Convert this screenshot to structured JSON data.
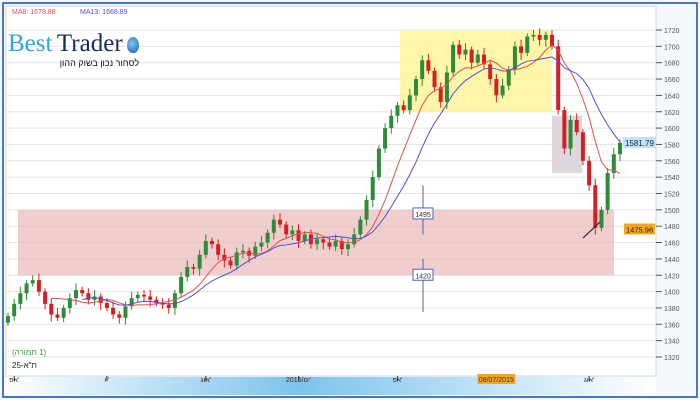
{
  "header": {
    "ma8": "MA8: 1678.88",
    "ma13": "MA13: 1668.89"
  },
  "logo": {
    "word1": "Best",
    "word2": "Trader",
    "tagline": "לסחור נכון בשוק ההון"
  },
  "legend": {
    "period": "(1 תמורה)",
    "instrument": "ת\"א-25"
  },
  "colors": {
    "up": "#2e8b3a",
    "down": "#d42020",
    "ma8": "#e05050",
    "ma13": "#5050d0",
    "yellow_zone": "#fff59a",
    "pink_zone": "#e8b4b4",
    "gray_zone": "#d9d0d8",
    "last_price_bg": "#bfe3f7",
    "marker_bg": "#f5a623"
  },
  "chart_data": {
    "type": "candlestick",
    "title": "",
    "ylim": [
      1310,
      1730
    ],
    "yticks": [
      1320,
      1340,
      1360,
      1380,
      1400,
      1420,
      1440,
      1460,
      1480,
      1500,
      1520,
      1540,
      1560,
      1580,
      1600,
      1620,
      1640,
      1660,
      1680,
      1700,
      1720
    ],
    "xtick_labels": [
      "אפ'",
      "יו'",
      "אוג'",
      "2015/ינו'",
      "אפ'",
      "08/07/2015",
      "אוג'"
    ],
    "highlighted_date": "08/07/2015",
    "closes": [
      1370,
      1385,
      1398,
      1410,
      1414,
      1400,
      1385,
      1372,
      1368,
      1380,
      1392,
      1402,
      1398,
      1390,
      1394,
      1386,
      1380,
      1372,
      1368,
      1382,
      1392,
      1396,
      1394,
      1390,
      1386,
      1384,
      1380,
      1398,
      1418,
      1430,
      1428,
      1445,
      1462,
      1458,
      1445,
      1438,
      1432,
      1448,
      1450,
      1444,
      1455,
      1460,
      1472,
      1488,
      1482,
      1470,
      1475,
      1462,
      1470,
      1458,
      1464,
      1460,
      1455,
      1462,
      1452,
      1458,
      1470,
      1488,
      1512,
      1540,
      1575,
      1600,
      1615,
      1628,
      1622,
      1640,
      1660,
      1683,
      1670,
      1650,
      1632,
      1668,
      1702,
      1690,
      1696,
      1680,
      1690,
      1678,
      1660,
      1640,
      1652,
      1672,
      1700,
      1692,
      1712,
      1714,
      1708,
      1714,
      1700,
      1622,
      1575,
      1610,
      1595,
      1560,
      1530,
      1478,
      1500,
      1545,
      1568,
      1582
    ],
    "moving_averages": [
      {
        "name": "MA8",
        "period": 8
      },
      {
        "name": "MA13",
        "period": 13
      }
    ],
    "zones": [
      {
        "name": "resistance-zone",
        "price_top": 1720,
        "price_bottom": 1620,
        "color": "yellow"
      },
      {
        "name": "consolidation-zone",
        "price_top": 1615,
        "price_bottom": 1545,
        "color": "gray"
      },
      {
        "name": "support-zone",
        "price_top": 1500,
        "price_bottom": 1420,
        "color": "pink"
      }
    ],
    "level_labels": [
      "1495",
      "1420"
    ],
    "last_price": "1581.79",
    "marker_price": "1475.96"
  }
}
